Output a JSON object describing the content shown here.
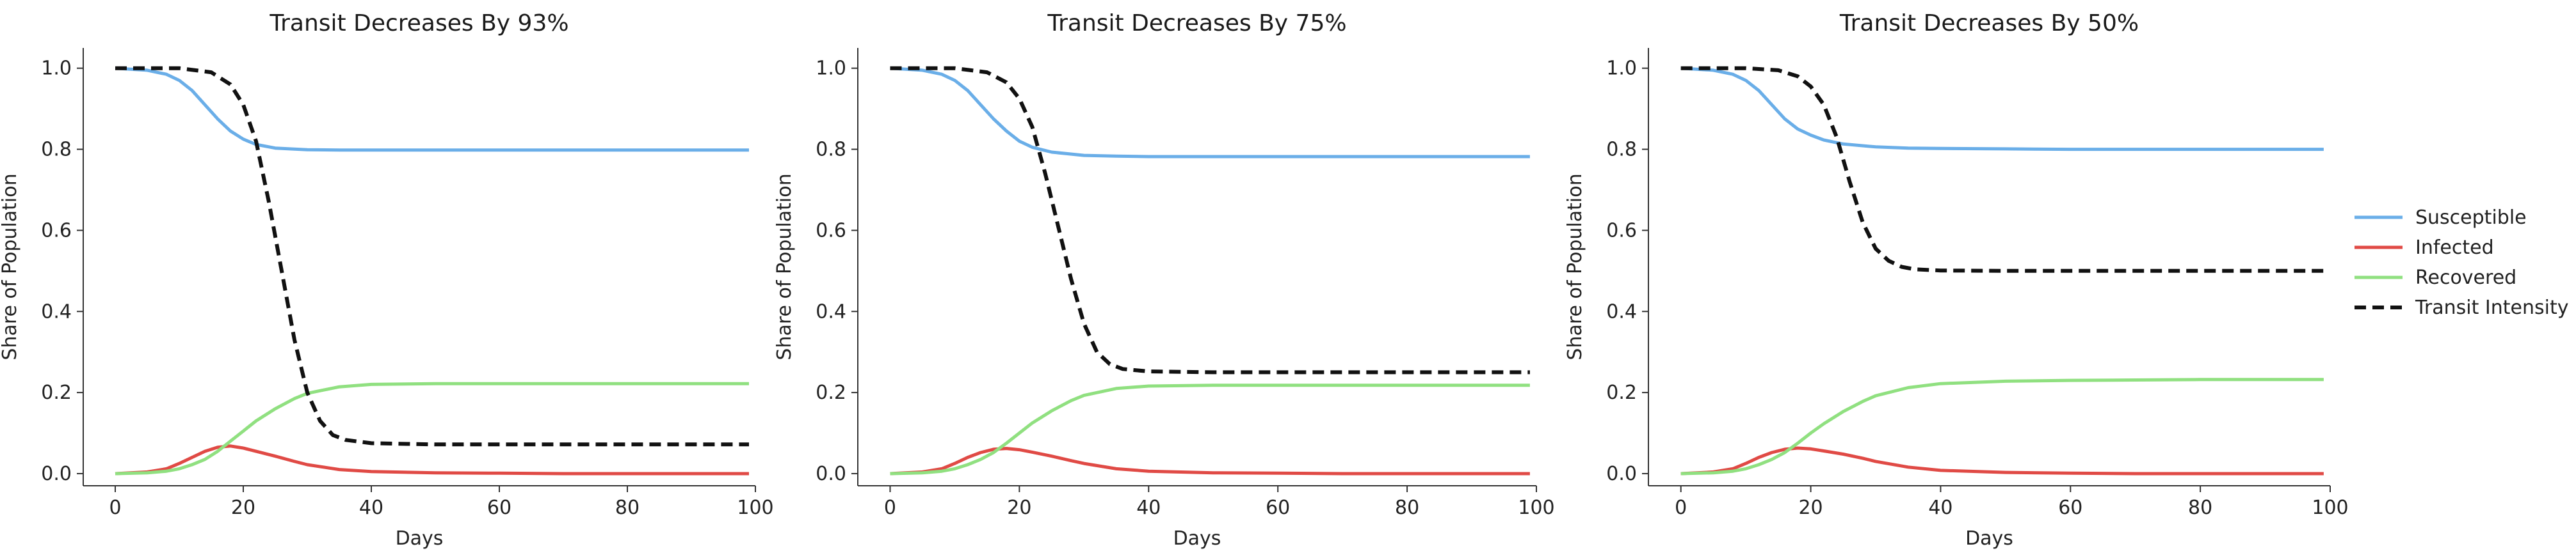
{
  "chart_data": [
    {
      "type": "line",
      "title": "Transit Decreases By 93%",
      "xlabel": "Days",
      "ylabel": "Share of Population",
      "xlim": [
        -5,
        100
      ],
      "ylim": [
        -0.03,
        1.05
      ],
      "xticks": [
        0,
        20,
        40,
        60,
        80,
        100
      ],
      "yticks": [
        0.0,
        0.2,
        0.4,
        0.6,
        0.8,
        1.0
      ],
      "grid": false,
      "series": [
        {
          "name": "Susceptible",
          "color": "#6aaee8",
          "style": "solid",
          "x": [
            0,
            5,
            8,
            10,
            12,
            14,
            16,
            18,
            20,
            22,
            25,
            30,
            35,
            40,
            50,
            60,
            70,
            80,
            90,
            99
          ],
          "y": [
            1.0,
            0.995,
            0.985,
            0.97,
            0.945,
            0.91,
            0.875,
            0.845,
            0.825,
            0.812,
            0.803,
            0.799,
            0.798,
            0.798,
            0.798,
            0.798,
            0.798,
            0.798,
            0.798,
            0.798
          ]
        },
        {
          "name": "Infected",
          "color": "#e04a45",
          "style": "solid",
          "x": [
            0,
            5,
            8,
            10,
            12,
            14,
            16,
            18,
            20,
            22,
            25,
            28,
            30,
            35,
            40,
            50,
            60,
            70,
            80,
            90,
            99
          ],
          "y": [
            0.0,
            0.004,
            0.012,
            0.025,
            0.04,
            0.055,
            0.065,
            0.068,
            0.063,
            0.055,
            0.043,
            0.03,
            0.022,
            0.01,
            0.005,
            0.002,
            0.001,
            0.0,
            0.0,
            0.0,
            0.0
          ]
        },
        {
          "name": "Recovered",
          "color": "#90e080",
          "style": "solid",
          "x": [
            0,
            5,
            8,
            10,
            12,
            14,
            16,
            18,
            20,
            22,
            25,
            28,
            30,
            35,
            40,
            50,
            60,
            70,
            80,
            90,
            99
          ],
          "y": [
            0.0,
            0.002,
            0.006,
            0.012,
            0.022,
            0.035,
            0.055,
            0.08,
            0.105,
            0.13,
            0.16,
            0.185,
            0.198,
            0.214,
            0.22,
            0.222,
            0.222,
            0.222,
            0.222,
            0.222,
            0.222
          ]
        },
        {
          "name": "Transit Intensity",
          "color": "#111111",
          "style": "dashed",
          "x": [
            0,
            10,
            15,
            18,
            20,
            22,
            24,
            26,
            28,
            30,
            32,
            34,
            36,
            40,
            50,
            60,
            70,
            80,
            90,
            99
          ],
          "y": [
            1.0,
            1.0,
            0.99,
            0.96,
            0.91,
            0.82,
            0.67,
            0.5,
            0.33,
            0.2,
            0.13,
            0.095,
            0.083,
            0.075,
            0.072,
            0.072,
            0.072,
            0.072,
            0.072,
            0.072
          ]
        }
      ]
    },
    {
      "type": "line",
      "title": "Transit Decreases By 75%",
      "xlabel": "Days",
      "ylabel": "Share of Population",
      "xlim": [
        -5,
        100
      ],
      "ylim": [
        -0.03,
        1.05
      ],
      "xticks": [
        0,
        20,
        40,
        60,
        80,
        100
      ],
      "yticks": [
        0.0,
        0.2,
        0.4,
        0.6,
        0.8,
        1.0
      ],
      "grid": false,
      "series": [
        {
          "name": "Susceptible",
          "color": "#6aaee8",
          "style": "solid",
          "x": [
            0,
            5,
            8,
            10,
            12,
            14,
            16,
            18,
            20,
            22,
            25,
            30,
            35,
            40,
            50,
            60,
            70,
            80,
            90,
            99
          ],
          "y": [
            1.0,
            0.995,
            0.985,
            0.97,
            0.945,
            0.91,
            0.875,
            0.845,
            0.82,
            0.805,
            0.793,
            0.785,
            0.783,
            0.782,
            0.782,
            0.782,
            0.782,
            0.782,
            0.782,
            0.782
          ]
        },
        {
          "name": "Infected",
          "color": "#e04a45",
          "style": "solid",
          "x": [
            0,
            5,
            8,
            10,
            12,
            14,
            16,
            18,
            20,
            22,
            25,
            28,
            30,
            35,
            40,
            50,
            60,
            70,
            80,
            90,
            99
          ],
          "y": [
            0.0,
            0.004,
            0.012,
            0.025,
            0.04,
            0.052,
            0.06,
            0.062,
            0.059,
            0.053,
            0.043,
            0.032,
            0.025,
            0.012,
            0.006,
            0.002,
            0.001,
            0.0,
            0.0,
            0.0,
            0.0
          ]
        },
        {
          "name": "Recovered",
          "color": "#90e080",
          "style": "solid",
          "x": [
            0,
            5,
            8,
            10,
            12,
            14,
            16,
            18,
            20,
            22,
            25,
            28,
            30,
            35,
            40,
            50,
            60,
            70,
            80,
            90,
            99
          ],
          "y": [
            0.0,
            0.002,
            0.006,
            0.012,
            0.022,
            0.035,
            0.052,
            0.075,
            0.1,
            0.125,
            0.155,
            0.18,
            0.193,
            0.21,
            0.216,
            0.218,
            0.218,
            0.218,
            0.218,
            0.218,
            0.218
          ]
        },
        {
          "name": "Transit Intensity",
          "color": "#111111",
          "style": "dashed",
          "x": [
            0,
            10,
            15,
            18,
            20,
            22,
            24,
            26,
            28,
            30,
            32,
            34,
            36,
            40,
            50,
            60,
            70,
            80,
            90,
            99
          ],
          "y": [
            1.0,
            1.0,
            0.99,
            0.965,
            0.925,
            0.855,
            0.74,
            0.61,
            0.48,
            0.37,
            0.3,
            0.27,
            0.258,
            0.252,
            0.25,
            0.25,
            0.25,
            0.25,
            0.25,
            0.25
          ]
        }
      ]
    },
    {
      "type": "line",
      "title": "Transit Decreases By 50%",
      "xlabel": "Days",
      "ylabel": "Share of Population",
      "xlim": [
        -5,
        100
      ],
      "ylim": [
        -0.03,
        1.05
      ],
      "xticks": [
        0,
        20,
        40,
        60,
        80,
        100
      ],
      "yticks": [
        0.0,
        0.2,
        0.4,
        0.6,
        0.8,
        1.0
      ],
      "grid": false,
      "series": [
        {
          "name": "Susceptible",
          "color": "#6aaee8",
          "style": "solid",
          "x": [
            0,
            5,
            8,
            10,
            12,
            14,
            16,
            18,
            20,
            22,
            25,
            30,
            35,
            40,
            50,
            60,
            70,
            80,
            90,
            99
          ],
          "y": [
            1.0,
            0.995,
            0.985,
            0.97,
            0.945,
            0.91,
            0.875,
            0.85,
            0.835,
            0.823,
            0.813,
            0.806,
            0.803,
            0.802,
            0.801,
            0.8,
            0.8,
            0.8,
            0.8,
            0.8
          ]
        },
        {
          "name": "Infected",
          "color": "#e04a45",
          "style": "solid",
          "x": [
            0,
            5,
            8,
            10,
            12,
            14,
            16,
            18,
            20,
            22,
            25,
            28,
            30,
            35,
            40,
            50,
            60,
            70,
            80,
            90,
            99
          ],
          "y": [
            0.0,
            0.004,
            0.012,
            0.025,
            0.04,
            0.052,
            0.06,
            0.063,
            0.061,
            0.056,
            0.048,
            0.038,
            0.03,
            0.016,
            0.008,
            0.003,
            0.001,
            0.0,
            0.0,
            0.0,
            0.0
          ]
        },
        {
          "name": "Recovered",
          "color": "#90e080",
          "style": "solid",
          "x": [
            0,
            5,
            8,
            10,
            12,
            14,
            16,
            18,
            20,
            22,
            25,
            28,
            30,
            35,
            40,
            50,
            60,
            70,
            80,
            90,
            99
          ],
          "y": [
            0.0,
            0.002,
            0.006,
            0.012,
            0.022,
            0.035,
            0.052,
            0.075,
            0.1,
            0.123,
            0.153,
            0.178,
            0.192,
            0.212,
            0.222,
            0.228,
            0.23,
            0.231,
            0.232,
            0.232,
            0.232
          ]
        },
        {
          "name": "Transit Intensity",
          "color": "#111111",
          "style": "dashed",
          "x": [
            0,
            10,
            15,
            18,
            20,
            22,
            24,
            26,
            28,
            30,
            32,
            34,
            36,
            40,
            50,
            60,
            70,
            80,
            90,
            99
          ],
          "y": [
            1.0,
            1.0,
            0.995,
            0.98,
            0.955,
            0.91,
            0.83,
            0.72,
            0.62,
            0.555,
            0.525,
            0.51,
            0.504,
            0.501,
            0.5,
            0.5,
            0.5,
            0.5,
            0.5,
            0.5
          ]
        }
      ]
    }
  ],
  "legend": {
    "placement": "right",
    "items": [
      {
        "label": "Susceptible",
        "color": "#6aaee8",
        "style": "solid"
      },
      {
        "label": "Infected",
        "color": "#e04a45",
        "style": "solid"
      },
      {
        "label": "Recovered",
        "color": "#90e080",
        "style": "solid"
      },
      {
        "label": "Transit Intensity",
        "color": "#111111",
        "style": "dashed"
      }
    ]
  }
}
